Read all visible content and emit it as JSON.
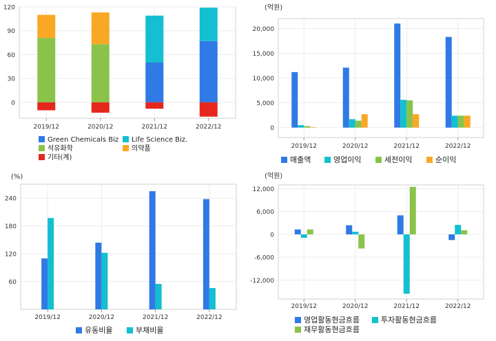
{
  "chart_data": [
    {
      "type": "bar",
      "stacked": true,
      "categories": [
        "2019/12",
        "2020/12",
        "2021/12",
        "2022/12"
      ],
      "unit": "",
      "ylim": [
        -20,
        120
      ],
      "yticks": [
        0,
        30,
        60,
        90,
        120
      ],
      "series": [
        {
          "name": "Green Chemicals Biz",
          "color": "#2f7ae5",
          "values": [
            0,
            0,
            50,
            77
          ]
        },
        {
          "name": "Life Science Biz.",
          "color": "#13bfd0",
          "values": [
            0,
            0,
            59,
            42
          ]
        },
        {
          "name": "석유화학",
          "color": "#8bc34a",
          "values": [
            81,
            73,
            0,
            0
          ]
        },
        {
          "name": "의약품",
          "color": "#f9a825",
          "values": [
            29,
            40,
            0,
            0
          ]
        },
        {
          "name": "기타(계)",
          "color": "#e5271e",
          "values": [
            -10,
            -13,
            -8,
            -18
          ]
        }
      ],
      "legend_layout": "two-column"
    },
    {
      "type": "bar",
      "categories": [
        "2019/12",
        "2020/12",
        "2021/12",
        "2022/12"
      ],
      "unit": "(억원)",
      "ylim": [
        -2000,
        22000
      ],
      "yticks": [
        0,
        5000,
        10000,
        15000,
        20000
      ],
      "yticklabels": [
        "0",
        "5,000",
        "10,000",
        "15,000",
        "20,000"
      ],
      "series": [
        {
          "name": "매출액",
          "color": "#2f7ae5",
          "values": [
            11200,
            12100,
            21000,
            18300
          ]
        },
        {
          "name": "영업이익",
          "color": "#13bfd0",
          "values": [
            500,
            1700,
            5600,
            2400
          ]
        },
        {
          "name": "세전이익",
          "color": "#8bc34a",
          "values": [
            300,
            1400,
            5500,
            2400
          ]
        },
        {
          "name": "순이익",
          "color": "#f9a825",
          "values": [
            100,
            2700,
            2700,
            2400
          ]
        }
      ],
      "legend_layout": "one-row"
    },
    {
      "type": "bar",
      "categories": [
        "2019/12",
        "2020/12",
        "2021/12",
        "2022/12"
      ],
      "unit": "(%)",
      "ylim": [
        0,
        270
      ],
      "yticks": [
        60,
        120,
        180,
        240
      ],
      "series": [
        {
          "name": "유동비율",
          "color": "#2f7ae5",
          "values": [
            110,
            144,
            255,
            238
          ]
        },
        {
          "name": "부채비율",
          "color": "#13bfd0",
          "values": [
            197,
            122,
            55,
            46
          ]
        }
      ],
      "legend_layout": "one-row"
    },
    {
      "type": "bar",
      "categories": [
        "2019/12",
        "2020/12",
        "2021/12",
        "2022/12"
      ],
      "unit": "(억원)",
      "ylim": [
        -17000,
        13000
      ],
      "yticks": [
        -12000,
        -6000,
        0,
        6000,
        12000
      ],
      "yticklabels": [
        "-12,000",
        "-6,000",
        "0",
        "6,000",
        "12,000"
      ],
      "series": [
        {
          "name": "영업활동현금흐름",
          "color": "#2f7ae5",
          "values": [
            1300,
            2400,
            5000,
            -1500
          ]
        },
        {
          "name": "투자활동현금흐름",
          "color": "#13bfd0",
          "values": [
            -900,
            700,
            -15600,
            2500
          ]
        },
        {
          "name": "재무활동현금흐름",
          "color": "#8bc34a",
          "values": [
            1300,
            -3700,
            12500,
            1100
          ]
        }
      ],
      "legend_layout": "two-column"
    }
  ]
}
